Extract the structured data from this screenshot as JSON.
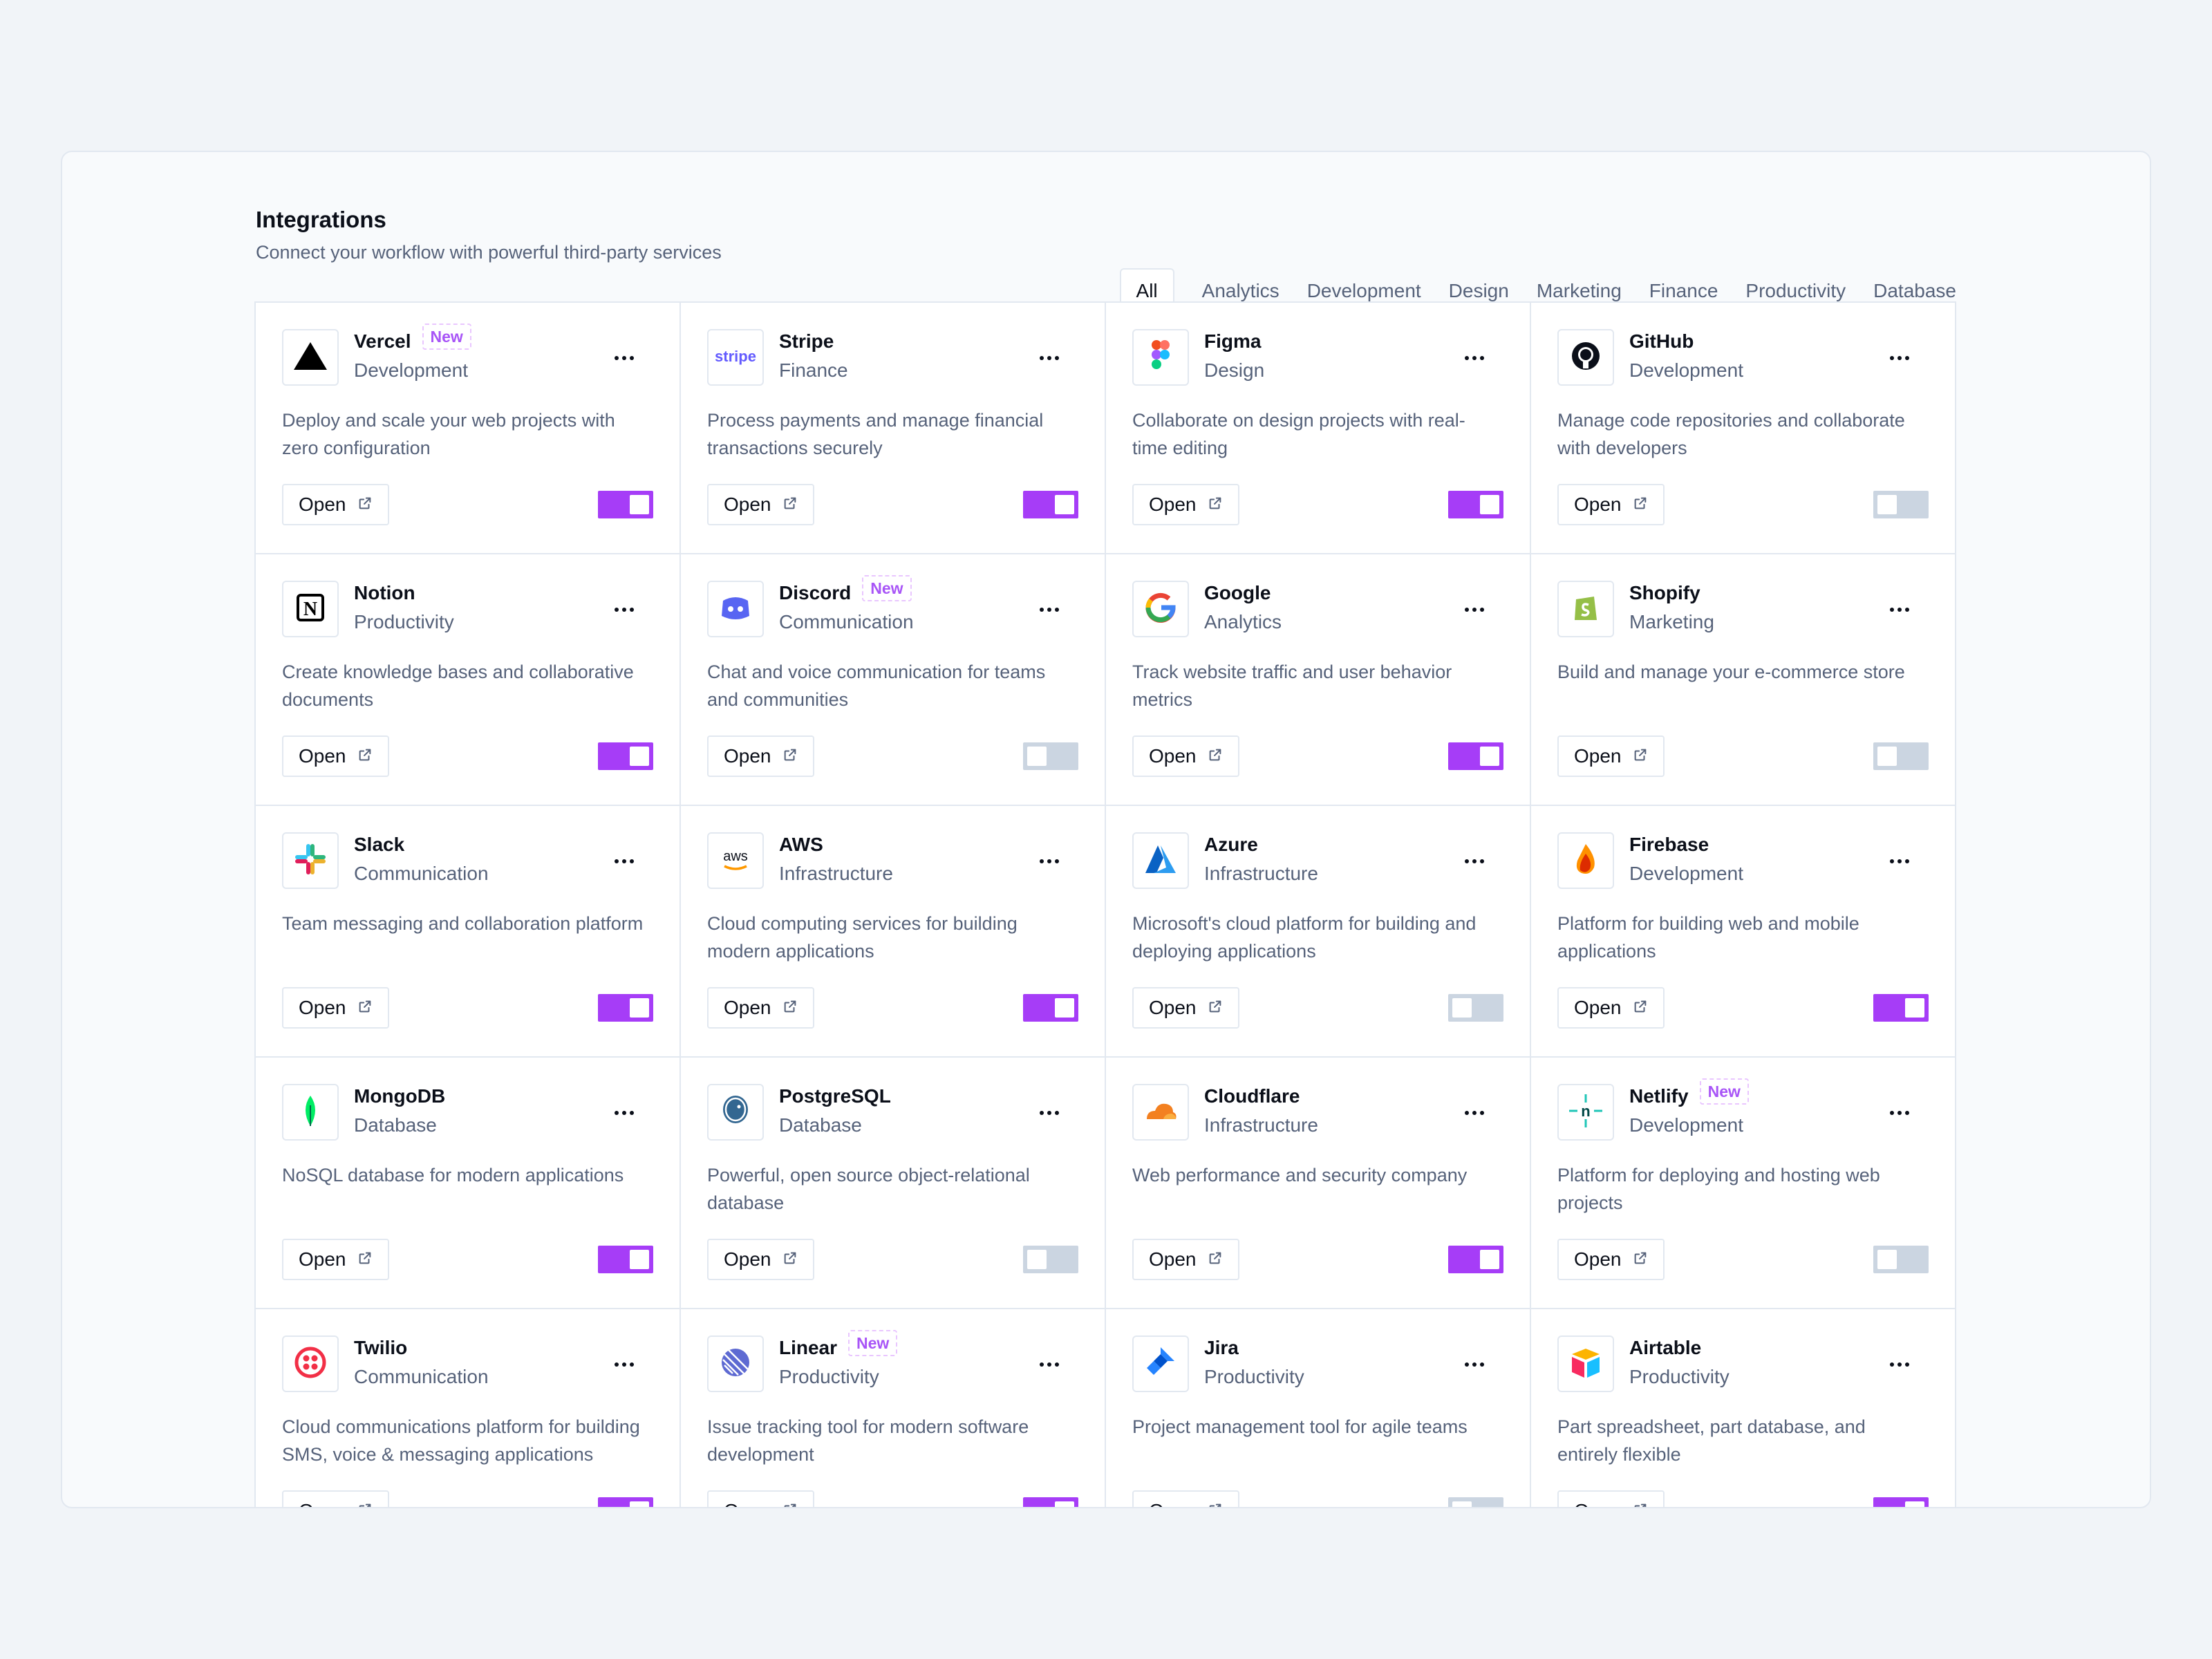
{
  "header": {
    "title": "Integrations",
    "subtitle": "Connect your workflow with powerful third-party services"
  },
  "filters": [
    "All",
    "Analytics",
    "Development",
    "Design",
    "Marketing",
    "Finance",
    "Productivity",
    "Database"
  ],
  "active_filter": "All",
  "open_label": "Open",
  "colors": {
    "accent": "#a63df7",
    "toggle_off": "#cbd5e1",
    "badge": "#a855f7"
  },
  "integrations": [
    {
      "name": "Vercel",
      "badge": "New",
      "category": "Development",
      "description": "Deploy and scale your web projects with zero configuration",
      "enabled": true,
      "icon": "vercel-icon"
    },
    {
      "name": "Stripe",
      "badge": "",
      "category": "Finance",
      "description": "Process payments and manage financial transactions securely",
      "enabled": true,
      "icon": "stripe-icon",
      "logo_text": "stripe"
    },
    {
      "name": "Figma",
      "badge": "",
      "category": "Design",
      "description": "Collaborate on design projects with real-time editing",
      "enabled": true,
      "icon": "figma-icon"
    },
    {
      "name": "GitHub",
      "badge": "",
      "category": "Development",
      "description": "Manage code repositories and collaborate with developers",
      "enabled": false,
      "icon": "github-icon"
    },
    {
      "name": "Notion",
      "badge": "",
      "category": "Productivity",
      "description": "Create knowledge bases and collaborative documents",
      "enabled": true,
      "icon": "notion-icon",
      "logo_text": "N"
    },
    {
      "name": "Discord",
      "badge": "New",
      "category": "Communication",
      "description": "Chat and voice communication for teams and communities",
      "enabled": false,
      "icon": "discord-icon"
    },
    {
      "name": "Google",
      "badge": "",
      "category": "Analytics",
      "description": "Track website traffic and user behavior metrics",
      "enabled": true,
      "icon": "google-icon"
    },
    {
      "name": "Shopify",
      "badge": "",
      "category": "Marketing",
      "description": "Build and manage your e-commerce store",
      "enabled": false,
      "icon": "shopify-icon"
    },
    {
      "name": "Slack",
      "badge": "",
      "category": "Communication",
      "description": "Team messaging and collaboration platform",
      "enabled": true,
      "icon": "slack-icon"
    },
    {
      "name": "AWS",
      "badge": "",
      "category": "Infrastructure",
      "description": "Cloud computing services for building modern applications",
      "enabled": true,
      "icon": "aws-icon",
      "logo_text": "aws"
    },
    {
      "name": "Azure",
      "badge": "",
      "category": "Infrastructure",
      "description": "Microsoft's cloud platform for building and deploying applications",
      "enabled": false,
      "icon": "azure-icon"
    },
    {
      "name": "Firebase",
      "badge": "",
      "category": "Development",
      "description": "Platform for building web and mobile applications",
      "enabled": true,
      "icon": "firebase-icon"
    },
    {
      "name": "MongoDB",
      "badge": "",
      "category": "Database",
      "description": "NoSQL database for modern applications",
      "enabled": true,
      "icon": "mongodb-icon"
    },
    {
      "name": "PostgreSQL",
      "badge": "",
      "category": "Database",
      "description": "Powerful, open source object-relational database",
      "enabled": false,
      "icon": "postgresql-icon"
    },
    {
      "name": "Cloudflare",
      "badge": "",
      "category": "Infrastructure",
      "description": "Web performance and security company",
      "enabled": true,
      "icon": "cloudflare-icon"
    },
    {
      "name": "Netlify",
      "badge": "New",
      "category": "Development",
      "description": "Platform for deploying and hosting web projects",
      "enabled": false,
      "icon": "netlify-icon",
      "logo_text": "n"
    },
    {
      "name": "Twilio",
      "badge": "",
      "category": "Communication",
      "description": "Cloud communications platform for building SMS, voice & messaging applications",
      "enabled": true,
      "icon": "twilio-icon"
    },
    {
      "name": "Linear",
      "badge": "New",
      "category": "Productivity",
      "description": "Issue tracking tool for modern software development",
      "enabled": true,
      "icon": "linear-icon"
    },
    {
      "name": "Jira",
      "badge": "",
      "category": "Productivity",
      "description": "Project management tool for agile teams",
      "enabled": false,
      "icon": "jira-icon"
    },
    {
      "name": "Airtable",
      "badge": "",
      "category": "Productivity",
      "description": "Part spreadsheet, part database, and entirely flexible",
      "enabled": true,
      "icon": "airtable-icon"
    }
  ]
}
